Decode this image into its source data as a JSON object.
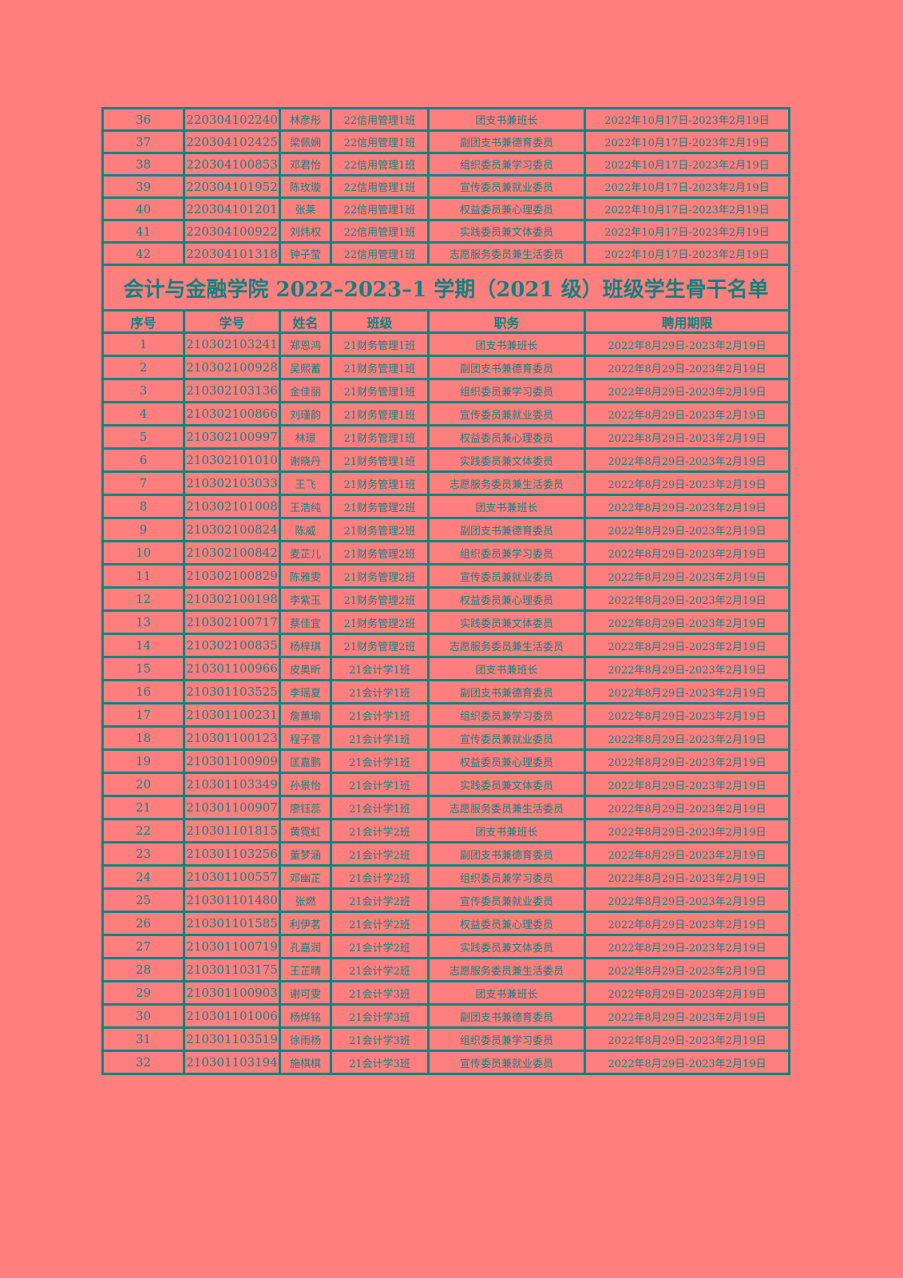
{
  "colors": {
    "background": "#ff7f7f",
    "text": "#13807e",
    "border": "#0b8582"
  },
  "top_rows": [
    [
      "36",
      "220304102240",
      "林彦彤",
      "22信用管理1班",
      "团支书兼班长",
      "2022年10月17日-2023年2月19日"
    ],
    [
      "37",
      "220304102425",
      "梁佩娴",
      "22信用管理1班",
      "副团支书兼德育委员",
      "2022年10月17日-2023年2月19日"
    ],
    [
      "38",
      "220304100853",
      "邓君怡",
      "22信用管理1班",
      "组织委员兼学习委员",
      "2022年10月17日-2023年2月19日"
    ],
    [
      "39",
      "220304101952",
      "陈玫璇",
      "22信用管理1班",
      "宣传委员兼就业委员",
      "2022年10月17日-2023年2月19日"
    ],
    [
      "40",
      "220304101201",
      "张莱",
      "22信用管理1班",
      "权益委员兼心理委员",
      "2022年10月17日-2023年2月19日"
    ],
    [
      "41",
      "220304100922",
      "刘炜权",
      "22信用管理1班",
      "实践委员兼文体委员",
      "2022年10月17日-2023年2月19日"
    ],
    [
      "42",
      "220304101318",
      "钟子莹",
      "22信用管理1班",
      "志愿服务委员兼生活委员",
      "2022年10月17日-2023年2月19日"
    ]
  ],
  "title": "会计与金融学院 2022–2023–1 学期（2021 级）班级学生骨干名单",
  "headers": [
    "序号",
    "学号",
    "姓名",
    "班级",
    "职务",
    "聘用期限"
  ],
  "rows": [
    [
      "1",
      "210302103241",
      "郑恩鸿",
      "21财务管理1班",
      "团支书兼班长",
      "2022年8月29日-2023年2月19日"
    ],
    [
      "2",
      "210302100928",
      "吴熙蓄",
      "21财务管理1班",
      "副团支书兼德育委员",
      "2022年8月29日-2023年2月19日"
    ],
    [
      "3",
      "210302103136",
      "金佳丽",
      "21财务管理1班",
      "组织委员兼学习委员",
      "2022年8月29日-2023年2月19日"
    ],
    [
      "4",
      "210302100866",
      "刘瑾韵",
      "21财务管理1班",
      "宣传委员兼就业委员",
      "2022年8月29日-2023年2月19日"
    ],
    [
      "5",
      "210302100997",
      "林璟",
      "21财务管理1班",
      "权益委员兼心理委员",
      "2022年8月29日-2023年2月19日"
    ],
    [
      "6",
      "210302101010",
      "谢晓丹",
      "21财务管理1班",
      "实践委员兼文体委员",
      "2022年8月29日-2023年2月19日"
    ],
    [
      "7",
      "210302103033",
      "王飞",
      "21财务管理1班",
      "志愿服务委员兼生活委员",
      "2022年8月29日-2023年2月19日"
    ],
    [
      "8",
      "210302101008",
      "王浩纯",
      "21财务管理2班",
      "团支书兼班长",
      "2022年8月29日-2023年2月19日"
    ],
    [
      "9",
      "210302100824",
      "陈威",
      "21财务管理2班",
      "副团支书兼德育委员",
      "2022年8月29日-2023年2月19日"
    ],
    [
      "10",
      "210302100842",
      "麦芷儿",
      "21财务管理2班",
      "组织委员兼学习委员",
      "2022年8月29日-2023年2月19日"
    ],
    [
      "11",
      "210302100829",
      "陈雅雯",
      "21财务管理2班",
      "宣传委员兼就业委员",
      "2022年8月29日-2023年2月19日"
    ],
    [
      "12",
      "210302100198",
      "李紫玉",
      "21财务管理2班",
      "权益委员兼心理委员",
      "2022年8月29日-2023年2月19日"
    ],
    [
      "13",
      "210302100717",
      "蔡佳宜",
      "21财务管理2班",
      "实践委员兼文体委员",
      "2022年8月29日-2023年2月19日"
    ],
    [
      "14",
      "210302100835",
      "杨梓琪",
      "21财务管理2班",
      "志愿服务委员兼生活委员",
      "2022年8月29日-2023年2月19日"
    ],
    [
      "15",
      "210301100966",
      "皮奥昕",
      "21会计学1班",
      "团支书兼班长",
      "2022年8月29日-2023年2月19日"
    ],
    [
      "16",
      "210301103525",
      "李瑶夏",
      "21会计学1班",
      "副团支书兼德育委员",
      "2022年8月29日-2023年2月19日"
    ],
    [
      "17",
      "210301100231",
      "詹蕙瑜",
      "21会计学1班",
      "组织委员兼学习委员",
      "2022年8月29日-2023年2月19日"
    ],
    [
      "18",
      "210301100123",
      "程子菅",
      "21会计学1班",
      "宣传委员兼就业委员",
      "2022年8月29日-2023年2月19日"
    ],
    [
      "19",
      "210301100909",
      "匡嘉鹏",
      "21会计学1班",
      "权益委员兼心理委员",
      "2022年8月29日-2023年2月19日"
    ],
    [
      "20",
      "210301103349",
      "孙景怡",
      "21会计学1班",
      "实践委员兼文体委员",
      "2022年8月29日-2023年2月19日"
    ],
    [
      "21",
      "210301100907",
      "廖钰蕊",
      "21会计学1班",
      "志愿服务委员兼生活委员",
      "2022年8月29日-2023年2月19日"
    ],
    [
      "22",
      "210301101815",
      "黄霓虹",
      "21会计学2班",
      "团支书兼班长",
      "2022年8月29日-2023年2月19日"
    ],
    [
      "23",
      "210301103256",
      "董梦涵",
      "21会计学2班",
      "副团支书兼德育委员",
      "2022年8月29日-2023年2月19日"
    ],
    [
      "24",
      "210301100557",
      "邓幽芷",
      "21会计学2班",
      "组织委员兼学习委员",
      "2022年8月29日-2023年2月19日"
    ],
    [
      "25",
      "210301101480",
      "张燃",
      "21会计学2班",
      "宣传委员兼就业委员",
      "2022年8月29日-2023年2月19日"
    ],
    [
      "26",
      "210301101585",
      "利伊茗",
      "21会计学2班",
      "权益委员兼心理委员",
      "2022年8月29日-2023年2月19日"
    ],
    [
      "27",
      "210301100719",
      "孔嘉润",
      "21会计学2班",
      "实践委员兼文体委员",
      "2022年8月29日-2023年2月19日"
    ],
    [
      "28",
      "210301103175",
      "王芷晴",
      "21会计学2班",
      "志愿服务委员兼生活委员",
      "2022年8月29日-2023年2月19日"
    ],
    [
      "29",
      "210301100903",
      "谢可雯",
      "21会计学3班",
      "团支书兼班长",
      "2022年8月29日-2023年2月19日"
    ],
    [
      "30",
      "210301101006",
      "杨烨铭",
      "21会计学3班",
      "副团支书兼德育委员",
      "2022年8月29日-2023年2月19日"
    ],
    [
      "31",
      "210301103519",
      "徐雨杨",
      "21会计学3班",
      "组织委员兼学习委员",
      "2022年8月29日-2023年2月19日"
    ],
    [
      "32",
      "210301103194",
      "施棋棋",
      "21会计学3班",
      "宣传委员兼就业委员",
      "2022年8月29日-2023年2月19日"
    ]
  ]
}
